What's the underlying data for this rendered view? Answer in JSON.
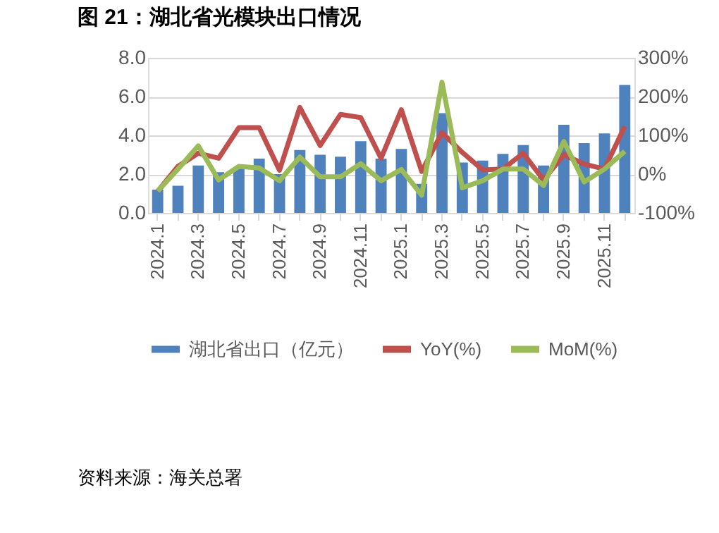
{
  "chart_data": {
    "type": "bar",
    "title": "图 21：湖北省光模块出口情况",
    "categories": [
      "2024.1",
      null,
      "2024.3",
      null,
      "2024.5",
      null,
      "2024.7",
      null,
      "2024.9",
      null,
      "2024.11",
      null,
      "2025.1",
      null,
      "2025.3",
      null,
      "2025.5",
      null,
      "2025.7",
      null,
      "2025.9",
      null,
      "2025.11",
      null
    ],
    "series": [
      {
        "name": "湖北省出口（亿元）",
        "color": "#4f81bd",
        "values": [
          1.2,
          1.4,
          2.45,
          2.1,
          2.3,
          2.8,
          2.0,
          3.25,
          3.0,
          2.9,
          3.7,
          2.8,
          3.3,
          1.5,
          5.15,
          2.6,
          2.7,
          3.05,
          3.5,
          2.45,
          4.55,
          3.6,
          4.1,
          6.6
        ]
      },
      {
        "name": "YoY(%)",
        "type": "line",
        "axis": "y2",
        "color": "#c0504d",
        "values": [
          -44,
          20,
          54,
          41,
          120,
          120,
          10,
          172,
          74,
          154,
          146,
          41,
          166,
          7,
          107,
          56,
          11,
          13,
          54,
          -15,
          50,
          26,
          13,
          123
        ]
      },
      {
        "name": "MoM(%)",
        "type": "line",
        "axis": "y2",
        "color": "#9bbb59",
        "values": [
          -44,
          13,
          73,
          -15,
          20,
          16,
          -17,
          44,
          -7,
          -7,
          27,
          -17,
          12,
          -54,
          237,
          -35,
          -17,
          13,
          13,
          -29,
          84,
          -20,
          13,
          59
        ]
      }
    ],
    "ylim": [
      0,
      8
    ],
    "yticks": [
      {
        "value": 0,
        "label": "0.0"
      },
      {
        "value": 2,
        "label": "2.0"
      },
      {
        "value": 4,
        "label": "4.0"
      },
      {
        "value": 6,
        "label": "6.0"
      },
      {
        "value": 8,
        "label": "8.0"
      }
    ],
    "y2lim": [
      -100,
      300
    ],
    "y2ticks": [
      {
        "value": -100,
        "label": "-100%"
      },
      {
        "value": 0,
        "label": "0%"
      },
      {
        "value": 100,
        "label": "100%"
      },
      {
        "value": 200,
        "label": "200%"
      },
      {
        "value": 300,
        "label": "300%"
      }
    ],
    "grid": "y",
    "legend": "bottom",
    "line_style": "solid",
    "marker": "none",
    "annotations": [
      "资料来源：海关总署"
    ]
  }
}
